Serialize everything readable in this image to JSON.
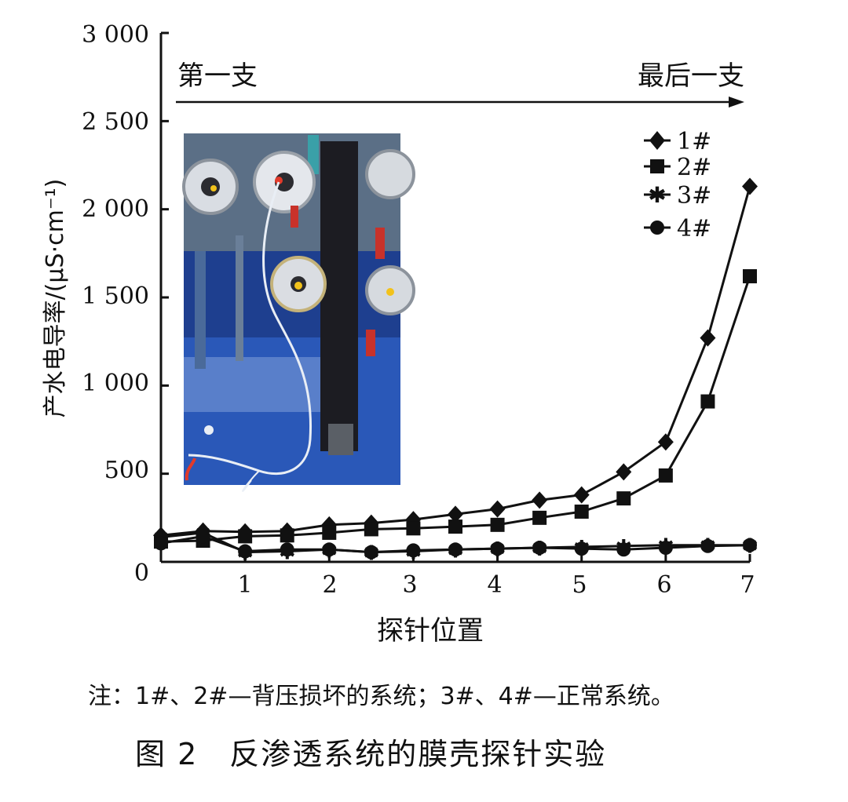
{
  "chart_data": {
    "type": "line",
    "xlabel": "探针位置",
    "ylabel": "产水电导率/(μS·cm⁻¹)",
    "xlim": [
      0,
      7
    ],
    "ylim": [
      0,
      3000
    ],
    "x_ticks": [
      "1",
      "2",
      "3",
      "4",
      "5",
      "6",
      "7"
    ],
    "y_ticks": [
      "3 000",
      "2 500",
      "2 000",
      "1 500",
      "1 000",
      "500",
      "0"
    ],
    "grid": false,
    "legend_position": "top-right",
    "x": [
      0,
      0.5,
      1,
      1.5,
      2,
      2.5,
      3,
      3.5,
      4,
      4.5,
      5,
      5.5,
      6,
      6.5,
      7
    ],
    "series": [
      {
        "name": "1#",
        "marker": "diamond",
        "values": [
          150,
          175,
          170,
          175,
          210,
          220,
          240,
          270,
          300,
          350,
          380,
          510,
          680,
          1270,
          2130
        ]
      },
      {
        "name": "2#",
        "marker": "square",
        "values": [
          115,
          120,
          145,
          150,
          165,
          185,
          190,
          200,
          210,
          250,
          285,
          360,
          490,
          910,
          1620
        ]
      },
      {
        "name": "3#",
        "marker": "star",
        "values": [
          140,
          165,
          55,
          60,
          70,
          55,
          60,
          70,
          75,
          80,
          85,
          90,
          95,
          95,
          95
        ]
      },
      {
        "name": "4#",
        "marker": "circle",
        "values": [
          105,
          145,
          60,
          70,
          70,
          55,
          65,
          70,
          75,
          80,
          75,
          70,
          80,
          90,
          95
        ]
      }
    ],
    "annotations": [
      {
        "text": "第一支"
      },
      {
        "text": "最后一支"
      }
    ],
    "inset_photo": "reverse osmosis membrane housings with probe tube"
  },
  "legend_labels": [
    "1#",
    "2#",
    "3#",
    "4#"
  ],
  "note": "注：1#、2#—背压损坏的系统；3#、4#—正常系统。",
  "caption": "图 2　反渗透系统的膜壳探针实验"
}
